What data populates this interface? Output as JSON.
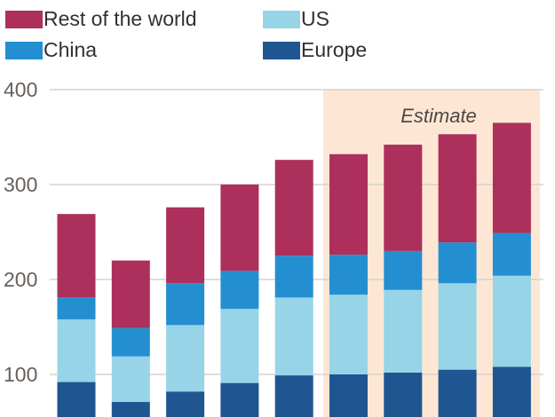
{
  "chart_data": {
    "type": "bar",
    "stacked": true,
    "categories": [
      "",
      "",
      "",
      "",
      "",
      "",
      "",
      "",
      ""
    ],
    "series": [
      {
        "name": "Europe",
        "color": "#1f5591",
        "values": [
          92,
          71,
          82,
          91,
          99,
          100,
          102,
          105,
          108
        ]
      },
      {
        "name": "US",
        "color": "#97d4e8",
        "values": [
          66,
          48,
          70,
          78,
          82,
          84,
          87,
          91,
          96
        ]
      },
      {
        "name": "China",
        "color": "#238fd0",
        "values": [
          23,
          30,
          44,
          40,
          44,
          42,
          41,
          43,
          45
        ]
      },
      {
        "name": "Rest of the world",
        "color": "#ad2f5b",
        "values": [
          88,
          71,
          80,
          91,
          101,
          106,
          112,
          114,
          116
        ]
      }
    ],
    "ylim": [
      50,
      400
    ],
    "yticks": [
      100,
      200,
      300,
      400
    ],
    "grid": true,
    "legend_position": "top",
    "estimate": {
      "label": "Estimate",
      "from_index": 5,
      "to_index": 8,
      "shade_color": "#fde7d4"
    }
  },
  "legend": [
    {
      "label": "Rest of the world",
      "color": "#ad2f5b"
    },
    {
      "label": "US",
      "color": "#97d4e8"
    },
    {
      "label": "China",
      "color": "#238fd0"
    },
    {
      "label": "Europe",
      "color": "#1f5591"
    }
  ]
}
